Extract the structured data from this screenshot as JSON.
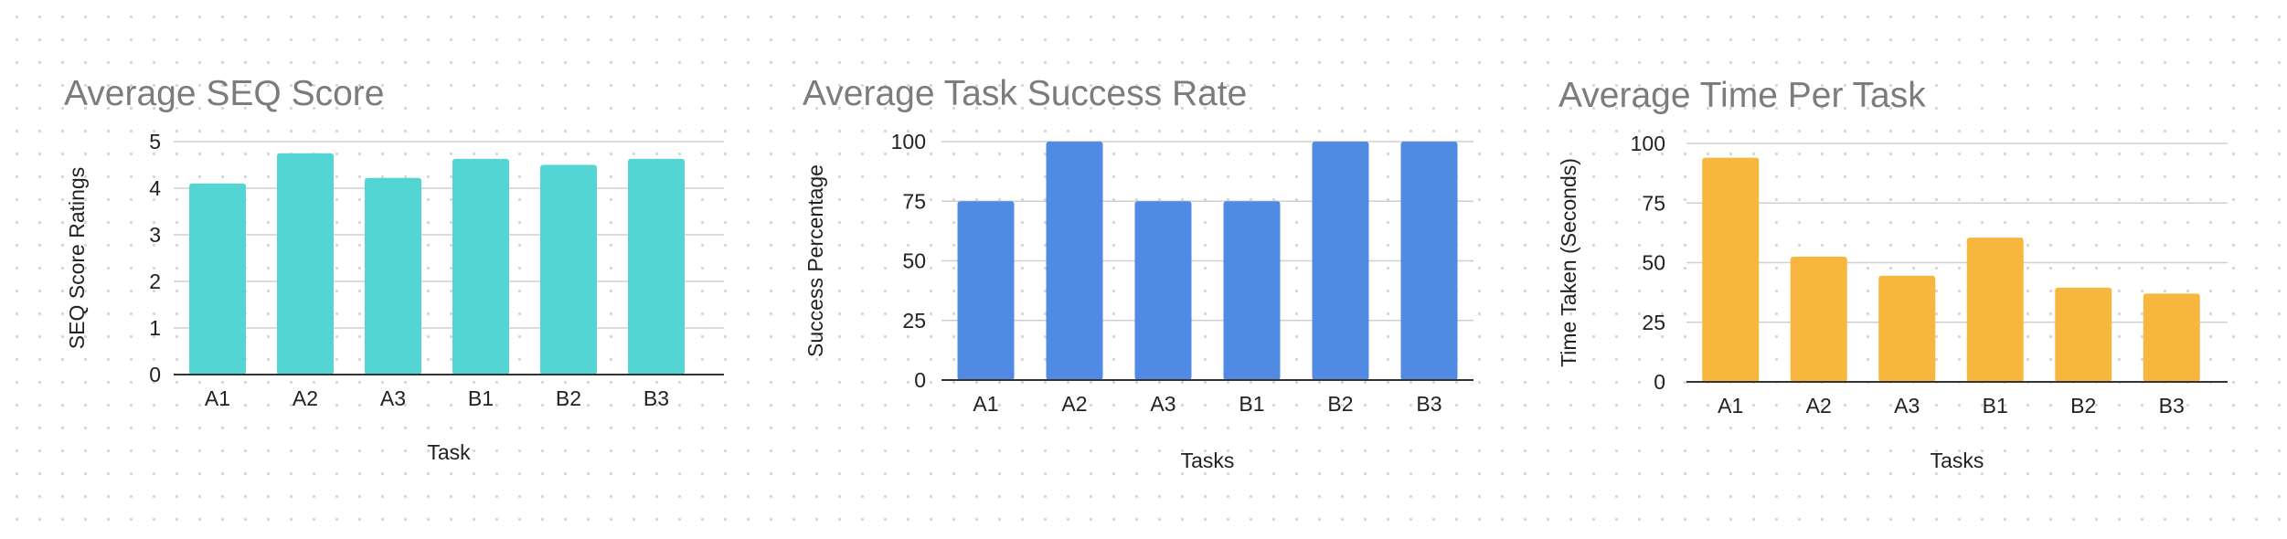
{
  "chart_data": [
    {
      "type": "bar",
      "title": "Average SEQ Score",
      "xlabel": "Task",
      "ylabel": "SEQ Score Ratings",
      "categories": [
        "A1",
        "A2",
        "A3",
        "B1",
        "B2",
        "B3"
      ],
      "values": [
        4.1,
        4.75,
        4.22,
        4.63,
        4.5,
        4.63
      ],
      "ylim": [
        0,
        5
      ],
      "yticks": [
        0,
        1,
        2,
        3,
        4,
        5
      ],
      "color": "#53d5d3",
      "grid": true,
      "legend": "none"
    },
    {
      "type": "bar",
      "title": "Average Task Success Rate",
      "xlabel": "Tasks",
      "ylabel": "Success Percentage",
      "categories": [
        "A1",
        "A2",
        "A3",
        "B1",
        "B2",
        "B3"
      ],
      "values": [
        75,
        100,
        75,
        75,
        100,
        100
      ],
      "ylim": [
        0,
        100
      ],
      "yticks": [
        0,
        25,
        50,
        75,
        100
      ],
      "color": "#518ae3",
      "grid": true,
      "legend": "none"
    },
    {
      "type": "bar",
      "title": "Average Time Per Task",
      "xlabel": "Tasks",
      "ylabel": "Time Taken (Seconds)",
      "categories": [
        "A1",
        "A2",
        "A3",
        "B1",
        "B2",
        "B3"
      ],
      "values": [
        94,
        52.5,
        44.5,
        60.5,
        39.5,
        37
      ],
      "ylim": [
        0,
        100
      ],
      "yticks": [
        0,
        25,
        50,
        75,
        100
      ],
      "color": "#f7b73e",
      "grid": true,
      "legend": "none"
    }
  ]
}
